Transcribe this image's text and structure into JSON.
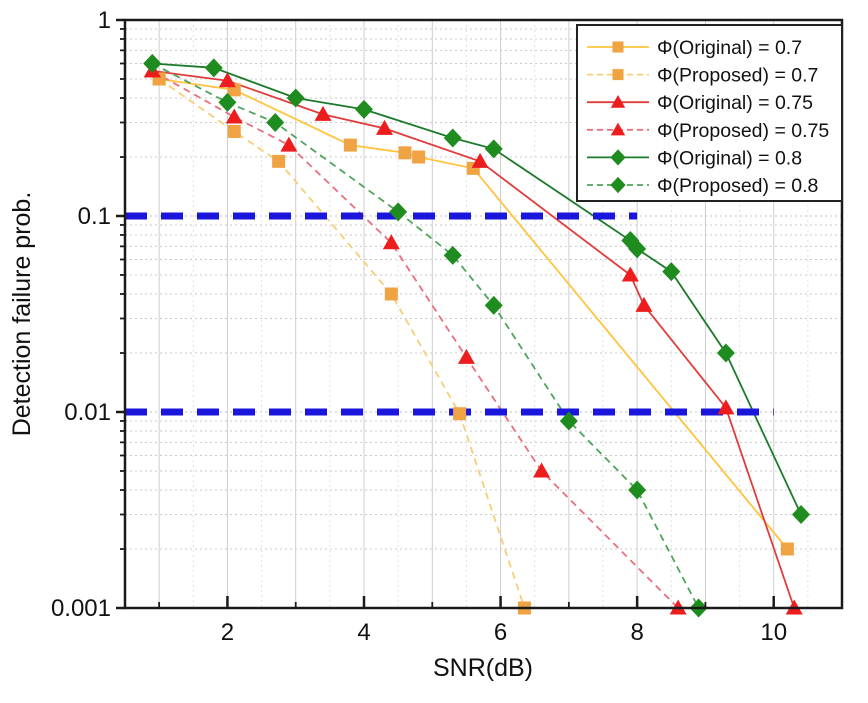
{
  "chart_data": {
    "type": "line",
    "title": "",
    "xlabel": "SNR(dB)",
    "ylabel": "Detection failure prob.",
    "grid": true,
    "legend_position": "top-right",
    "x_axis": {
      "scale": "linear",
      "min": 0.5,
      "max": 11,
      "major_ticks": [
        2,
        4,
        6,
        8,
        10
      ],
      "minor_ticks": [
        1,
        3,
        5,
        7,
        9
      ]
    },
    "y_axis": {
      "scale": "log",
      "min": 0.001,
      "max": 1,
      "ticks": [
        1,
        0.1,
        0.01,
        0.001
      ],
      "tick_labels": [
        "1",
        "0.1",
        "0.01",
        "0.001"
      ]
    },
    "reference_lines": [
      {
        "y": 0.1,
        "x_start": 0.5,
        "x_end": 8.0,
        "color": "#1a16dc",
        "style": "dashed"
      },
      {
        "y": 0.01,
        "x_start": 0.5,
        "x_end": 10.0,
        "color": "#1a16dc",
        "style": "dashed"
      }
    ],
    "series": [
      {
        "name": "Φ(Original) = 0.7",
        "marker": "square",
        "marker_color": "#f0a343",
        "line_color": "#ffc440",
        "dash": "solid",
        "points": [
          [
            1.0,
            0.5
          ],
          [
            2.1,
            0.44
          ],
          [
            3.8,
            0.23
          ],
          [
            4.6,
            0.21
          ],
          [
            4.8,
            0.2
          ],
          [
            5.6,
            0.175
          ],
          [
            10.2,
            0.002
          ]
        ]
      },
      {
        "name": "Φ(Proposed) = 0.7",
        "marker": "square",
        "marker_color": "#f0a343",
        "line_color": "#f7ce77",
        "dash": "dashed",
        "points": [
          [
            1.0,
            0.5
          ],
          [
            2.1,
            0.27
          ],
          [
            2.75,
            0.19
          ],
          [
            4.4,
            0.04
          ],
          [
            5.4,
            0.0098
          ],
          [
            6.35,
            0.001
          ]
        ]
      },
      {
        "name": "Φ(Original) = 0.75",
        "marker": "triangle",
        "marker_color": "#ee1d1d",
        "line_color": "#e03c3c",
        "dash": "solid",
        "points": [
          [
            0.9,
            0.55
          ],
          [
            2.0,
            0.49
          ],
          [
            3.4,
            0.33
          ],
          [
            4.3,
            0.28
          ],
          [
            5.7,
            0.19
          ],
          [
            7.9,
            0.05
          ],
          [
            8.1,
            0.035
          ],
          [
            9.3,
            0.0105
          ],
          [
            10.3,
            0.001
          ]
        ]
      },
      {
        "name": "Φ(Proposed) = 0.75",
        "marker": "triangle",
        "marker_color": "#ee1d1d",
        "line_color": "#e96f7e",
        "dash": "dashed",
        "points": [
          [
            0.9,
            0.55
          ],
          [
            2.1,
            0.32
          ],
          [
            2.9,
            0.23
          ],
          [
            4.4,
            0.073
          ],
          [
            5.5,
            0.019
          ],
          [
            6.6,
            0.005
          ],
          [
            8.6,
            0.001
          ]
        ]
      },
      {
        "name": "Φ(Original) = 0.8",
        "marker": "diamond",
        "marker_color": "#1e8c1e",
        "line_color": "#1d7a2c",
        "dash": "solid",
        "points": [
          [
            0.9,
            0.6
          ],
          [
            1.8,
            0.57
          ],
          [
            3.0,
            0.4
          ],
          [
            4.0,
            0.35
          ],
          [
            5.3,
            0.25
          ],
          [
            5.9,
            0.22
          ],
          [
            7.9,
            0.075
          ],
          [
            8.0,
            0.068
          ],
          [
            8.5,
            0.052
          ],
          [
            9.3,
            0.02
          ],
          [
            10.4,
            0.003
          ]
        ]
      },
      {
        "name": "Φ(Proposed) = 0.8",
        "marker": "diamond",
        "marker_color": "#1e8c1e",
        "line_color": "#4fa35c",
        "dash": "dashed",
        "points": [
          [
            0.9,
            0.6
          ],
          [
            2.0,
            0.38
          ],
          [
            2.7,
            0.3
          ],
          [
            4.5,
            0.105
          ],
          [
            5.3,
            0.063
          ],
          [
            5.9,
            0.035
          ],
          [
            7.0,
            0.009
          ],
          [
            8.0,
            0.004
          ],
          [
            8.9,
            0.001
          ]
        ]
      }
    ]
  }
}
